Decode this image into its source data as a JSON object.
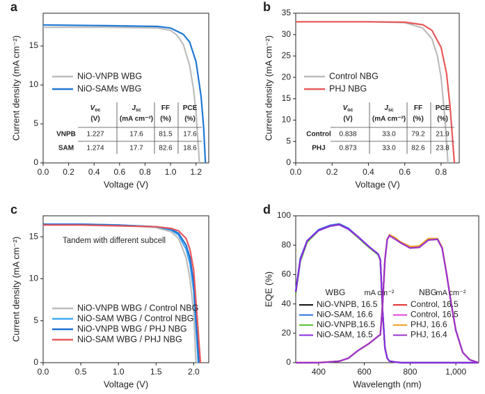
{
  "chart_data": [
    {
      "type": "line",
      "label": "a",
      "xlabel": "Voltage (V)",
      "ylabel": "Current density (mA cm⁻²)",
      "xlim": [
        0,
        1.3
      ],
      "ylim": [
        0,
        19.2
      ],
      "xticks": [
        {
          "value": 0,
          "label": "0.0"
        },
        0.2,
        0.4,
        0.6,
        0.8,
        {
          "value": 1,
          "label": "1.0"
        },
        1.2
      ],
      "yticks": [
        0,
        5,
        10,
        15
      ],
      "series": [
        {
          "name": "NiO-VNPB WBG",
          "color": "#bdbdbd",
          "x": [
            0,
            0.5,
            0.9,
            1.0,
            1.05,
            1.1,
            1.15,
            1.18,
            1.2,
            1.227
          ],
          "values": [
            17.4,
            17.4,
            17.3,
            17.0,
            16.4,
            15.2,
            12.5,
            9.5,
            6.5,
            0
          ]
        },
        {
          "name": "NiO-SAMs WBG",
          "color": "#1f78d4",
          "x": [
            0,
            0.5,
            0.9,
            1.0,
            1.1,
            1.15,
            1.2,
            1.24,
            1.26,
            1.274
          ],
          "values": [
            17.7,
            17.6,
            17.5,
            17.3,
            16.5,
            15.5,
            13.0,
            8.5,
            4.5,
            0
          ]
        }
      ],
      "table": {
        "columns": [
          {
            "main": "V",
            "sub": "oc",
            "unit": "(V)"
          },
          {
            "main": "J",
            "sub": "sc",
            "unit": "(mA cm⁻²)"
          },
          {
            "main": "FF",
            "unit": "(%)"
          },
          {
            "main": "PCE",
            "unit": "(%)"
          }
        ],
        "rows": [
          {
            "label": "VNPB",
            "cells": [
              "1.227",
              "17.6",
              "81.5",
              "17.6"
            ]
          },
          {
            "label": "SAM",
            "cells": [
              "1.274",
              "17.7",
              "82.6",
              "18.6"
            ]
          }
        ]
      }
    },
    {
      "type": "line",
      "label": "b",
      "xlabel": "Voltage (V)",
      "ylabel": "Current density (mA cm⁻²)",
      "xlim": [
        0,
        0.9
      ],
      "ylim": [
        0,
        35
      ],
      "xticks": [
        {
          "value": 0,
          "label": "0.0"
        },
        0.2,
        0.4,
        0.6,
        0.8
      ],
      "yticks": [
        0,
        5,
        10,
        15,
        20,
        25,
        30,
        35
      ],
      "series": [
        {
          "name": "Control NBG",
          "color": "#bdbdbd",
          "x": [
            0,
            0.4,
            0.6,
            0.7,
            0.75,
            0.78,
            0.8,
            0.82,
            0.838
          ],
          "values": [
            33.0,
            33.0,
            32.8,
            31.5,
            29.0,
            25.0,
            20.0,
            11.0,
            0
          ]
        },
        {
          "name": "PHJ NBG",
          "color": "#e8585a",
          "x": [
            0,
            0.4,
            0.6,
            0.7,
            0.75,
            0.8,
            0.83,
            0.85,
            0.873
          ],
          "values": [
            33.0,
            33.0,
            32.9,
            32.3,
            31.0,
            27.0,
            21.0,
            13.0,
            0
          ]
        }
      ],
      "table": {
        "columns": [
          {
            "main": "V",
            "sub": "oc",
            "unit": "(V)"
          },
          {
            "main": "J",
            "sub": "sc",
            "unit": "(mA cm⁻²)"
          },
          {
            "main": "FF",
            "unit": "(%)"
          },
          {
            "main": "PCE",
            "unit": "(%)"
          }
        ],
        "rows": [
          {
            "label": "Control",
            "cells": [
              "0.838",
              "33.0",
              "79.2",
              "21.9"
            ]
          },
          {
            "label": "PHJ",
            "cells": [
              "0.873",
              "33.0",
              "82.6",
              "23.8"
            ]
          }
        ]
      }
    },
    {
      "type": "line",
      "label": "c",
      "xlabel": "Voltage (V)",
      "ylabel": "Current density (mA cm⁻²)",
      "annotation": "Tandem with different subcell",
      "xlim": [
        0,
        2.2
      ],
      "ylim": [
        0,
        17.5
      ],
      "xticks": [
        {
          "value": 0,
          "label": "0.0"
        },
        0.5,
        {
          "value": 1,
          "label": "1.0"
        },
        1.5,
        {
          "value": 2,
          "label": "2.0"
        }
      ],
      "yticks": [
        0,
        5,
        10,
        15
      ],
      "series": [
        {
          "name": "NiO-VNPB WBG / Control NBG",
          "color": "#bdbdbd",
          "x": [
            0,
            0.5,
            1.0,
            1.5,
            1.7,
            1.8,
            1.9,
            1.95,
            2.0,
            2.03
          ],
          "values": [
            16.5,
            16.5,
            16.4,
            16.1,
            15.6,
            14.8,
            12.5,
            10.0,
            6.0,
            0
          ]
        },
        {
          "name": "NiO-SAM WBG / Control NBG",
          "color": "#3fa9f5",
          "x": [
            0,
            0.5,
            1.0,
            1.5,
            1.7,
            1.8,
            1.9,
            1.95,
            2.0,
            2.06
          ],
          "values": [
            16.5,
            16.5,
            16.4,
            16.2,
            15.8,
            15.2,
            13.5,
            11.8,
            8.5,
            0
          ]
        },
        {
          "name": "NiO-VNPB WBG / PHJ NBG",
          "color": "#1f6fd0",
          "x": [
            0,
            0.5,
            1.0,
            1.5,
            1.7,
            1.8,
            1.9,
            1.95,
            2.0,
            2.07
          ],
          "values": [
            16.5,
            16.5,
            16.4,
            16.2,
            15.9,
            15.4,
            14.0,
            12.5,
            9.5,
            0
          ]
        },
        {
          "name": "NiO-SAM WBG / PHJ NBG",
          "color": "#e8585a",
          "x": [
            0,
            0.5,
            1.0,
            1.5,
            1.7,
            1.8,
            1.9,
            1.95,
            2.0,
            2.09
          ],
          "values": [
            16.4,
            16.4,
            16.3,
            16.2,
            16.0,
            15.7,
            14.8,
            13.5,
            11.0,
            0
          ]
        }
      ]
    },
    {
      "type": "line",
      "label": "d",
      "xlabel": "Wavelength (nm)",
      "ylabel": "EQE (%)",
      "xlim": [
        300,
        1100
      ],
      "ylim": [
        0,
        100
      ],
      "xticks": [
        400,
        600,
        800,
        {
          "value": 1000,
          "label": "1,000"
        }
      ],
      "yticks": [
        0,
        20,
        40,
        60,
        80,
        100
      ],
      "x": [
        300,
        320,
        350,
        400,
        450,
        490,
        530,
        570,
        620,
        660,
        670,
        680,
        690,
        700,
        710,
        730,
        760,
        800,
        840,
        880,
        920,
        940,
        960,
        980,
        1000,
        1030,
        1060,
        1100
      ],
      "series_groups": [
        {
          "title": "WBG",
          "unit": "mA cm⁻²",
          "series": [
            {
              "name": "NiO-VNPB, 16.5",
              "color": "#111111",
              "values": [
                48,
                70,
                83,
                90,
                93,
                94,
                91,
                86,
                79,
                74,
                70,
                35,
                10,
                3,
                1,
                0.5,
                0,
                0,
                0,
                0,
                0,
                0,
                0,
                0,
                0,
                0,
                0,
                0
              ]
            },
            {
              "name": "NiO-SAM, 16.6",
              "color": "#2a6fdb",
              "values": [
                49,
                71,
                83,
                90.5,
                93.5,
                94.5,
                91.5,
                86,
                79,
                74,
                70,
                35,
                10,
                3,
                1,
                0.5,
                0,
                0,
                0,
                0,
                0,
                0,
                0,
                0,
                0,
                0,
                0,
                0
              ]
            },
            {
              "name": "NiO-VNPB,16.5",
              "color": "#5fbf2f",
              "values": [
                47,
                69,
                82,
                90,
                93,
                94,
                91,
                85.5,
                78.5,
                73.5,
                69.5,
                34,
                10,
                3,
                1,
                0.5,
                0,
                0,
                0,
                0,
                0,
                0,
                0,
                0,
                0,
                0,
                0,
                0
              ]
            },
            {
              "name": "NiO-SAM, 16.5",
              "color": "#8a2be2",
              "values": [
                48,
                70,
                83,
                90,
                93,
                94,
                91,
                86,
                79,
                74,
                70,
                35,
                10,
                3,
                1,
                0.5,
                0,
                0,
                0,
                0,
                0,
                0,
                0,
                0,
                0,
                0,
                0,
                0
              ]
            }
          ]
        },
        {
          "title": "NBG",
          "unit": "mA cm⁻²",
          "series": [
            {
              "name": "Control, 16.5",
              "color": "#e03030",
              "values": [
                0,
                0,
                0,
                0,
                0.5,
                1,
                3,
                8,
                13,
                18,
                19,
                40,
                70,
                84,
                87,
                85,
                82,
                79,
                79,
                84,
                84,
                78,
                60,
                40,
                22,
                7,
                2,
                0
              ]
            },
            {
              "name": "Control, 16.5",
              "color": "#e040e0",
              "values": [
                0,
                0,
                0,
                0,
                0.5,
                1,
                3,
                8,
                13,
                18,
                19,
                40,
                70,
                84,
                86.5,
                85,
                81.5,
                78.5,
                78.5,
                83.5,
                84,
                78,
                60,
                40,
                22,
                7,
                2,
                0
              ]
            },
            {
              "name": "PHJ, 16.6",
              "color": "#f0a020",
              "values": [
                0,
                0,
                0,
                0,
                0.5,
                1,
                3,
                8,
                13,
                18,
                19,
                40,
                70,
                84,
                87,
                85.5,
                82,
                79,
                79.5,
                84.5,
                84.5,
                78.5,
                60,
                40,
                22,
                7,
                2,
                0
              ]
            },
            {
              "name": "PHJ, 16.4",
              "color": "#9933cc",
              "values": [
                0,
                0,
                0,
                0,
                0.5,
                1,
                3,
                8,
                13,
                18,
                19,
                40,
                70,
                84,
                86.5,
                84.5,
                81.5,
                78,
                78.5,
                83.5,
                84,
                78,
                60,
                40,
                22,
                7,
                2,
                0
              ]
            }
          ]
        }
      ]
    }
  ]
}
